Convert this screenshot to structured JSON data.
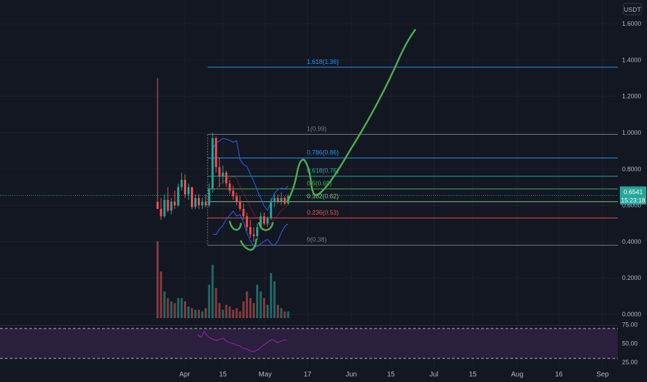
{
  "quote_currency": "USDT",
  "colors": {
    "background": "#131722",
    "grid": "#1e222d",
    "bull": "#26a69a",
    "bear": "#ef5350",
    "vol_bull": "#1f6b66",
    "vol_bear": "#8b3a3d",
    "bb": "#2962ff",
    "annotation": "#4caf50",
    "rsi": "#9c27b0",
    "rsi_band": "#2a1f3d",
    "price_tag": "#26a69a",
    "axis_text": "#b2b5be"
  },
  "price_axis": {
    "labels": [
      "1.6000",
      "1.4000",
      "1.2000",
      "1.0000",
      "0.8000",
      "0.6000",
      "0.4000",
      "0.2000",
      "0.0000"
    ],
    "values": [
      1.6,
      1.4,
      1.2,
      1.0,
      0.8,
      0.6,
      0.4,
      0.2,
      0.0
    ],
    "current_price": "0.6541",
    "countdown": "15:23:18"
  },
  "rsi_axis": {
    "labels": [
      "75.00",
      "50.00",
      "25.00"
    ],
    "values": [
      75,
      50,
      25
    ],
    "upper_band": 70,
    "lower_band": 30
  },
  "time_axis": {
    "labels": [
      "Apr",
      "15",
      "May",
      "17",
      "Jun",
      "15",
      "Jul",
      "15",
      "Aug",
      "16",
      "Sep"
    ]
  },
  "fib_levels": [
    {
      "label": "1.618(1.36)",
      "value": 1.36,
      "color": "#2196f3"
    },
    {
      "label": "1(0.99)",
      "value": 0.99,
      "color": "#787b86"
    },
    {
      "label": "0.786(0.86)",
      "value": 0.86,
      "color": "#2196f3"
    },
    {
      "label": "0.618(0.76)",
      "value": 0.76,
      "color": "#26a69a"
    },
    {
      "label": "0.5(0.69)",
      "value": 0.69,
      "color": "#4caf50"
    },
    {
      "label": "0.382(0.62)",
      "value": 0.62,
      "color": "#81c784"
    },
    {
      "label": "0.236(0.53)",
      "value": 0.53,
      "color": "#ef5350"
    },
    {
      "label": "0(0.38)",
      "value": 0.38,
      "color": "#787b86"
    }
  ],
  "chart_data": {
    "type": "candlestick",
    "ylim": [
      0,
      1.6
    ],
    "grid": true,
    "candles": [
      {
        "o": 0.62,
        "h": 1.3,
        "l": 0.58,
        "c": 0.58,
        "v": 0.46
      },
      {
        "o": 0.58,
        "h": 0.64,
        "l": 0.52,
        "c": 0.54,
        "v": 0.28
      },
      {
        "o": 0.54,
        "h": 0.66,
        "l": 0.53,
        "c": 0.63,
        "v": 0.16
      },
      {
        "o": 0.63,
        "h": 0.7,
        "l": 0.56,
        "c": 0.57,
        "v": 0.12
      },
      {
        "o": 0.57,
        "h": 0.64,
        "l": 0.55,
        "c": 0.62,
        "v": 0.1
      },
      {
        "o": 0.62,
        "h": 0.68,
        "l": 0.58,
        "c": 0.6,
        "v": 0.09
      },
      {
        "o": 0.6,
        "h": 0.72,
        "l": 0.59,
        "c": 0.7,
        "v": 0.12
      },
      {
        "o": 0.7,
        "h": 0.78,
        "l": 0.68,
        "c": 0.74,
        "v": 0.12
      },
      {
        "o": 0.74,
        "h": 0.77,
        "l": 0.64,
        "c": 0.66,
        "v": 0.1
      },
      {
        "o": 0.66,
        "h": 0.72,
        "l": 0.63,
        "c": 0.7,
        "v": 0.07
      },
      {
        "o": 0.7,
        "h": 0.7,
        "l": 0.58,
        "c": 0.59,
        "v": 0.06
      },
      {
        "o": 0.59,
        "h": 0.66,
        "l": 0.58,
        "c": 0.64,
        "v": 0.05
      },
      {
        "o": 0.64,
        "h": 0.66,
        "l": 0.58,
        "c": 0.6,
        "v": 0.05
      },
      {
        "o": 0.6,
        "h": 0.64,
        "l": 0.58,
        "c": 0.62,
        "v": 0.04
      },
      {
        "o": 0.62,
        "h": 0.66,
        "l": 0.59,
        "c": 0.6,
        "v": 0.06
      },
      {
        "o": 0.6,
        "h": 0.72,
        "l": 0.59,
        "c": 0.69,
        "v": 0.2
      },
      {
        "o": 0.69,
        "h": 1.0,
        "l": 0.67,
        "c": 0.97,
        "v": 0.32
      },
      {
        "o": 0.97,
        "h": 0.98,
        "l": 0.78,
        "c": 0.81,
        "v": 0.18
      },
      {
        "o": 0.81,
        "h": 0.86,
        "l": 0.7,
        "c": 0.76,
        "v": 0.09
      },
      {
        "o": 0.76,
        "h": 0.82,
        "l": 0.72,
        "c": 0.78,
        "v": 0.05
      },
      {
        "o": 0.78,
        "h": 0.79,
        "l": 0.7,
        "c": 0.72,
        "v": 0.08
      },
      {
        "o": 0.72,
        "h": 0.74,
        "l": 0.66,
        "c": 0.68,
        "v": 0.07
      },
      {
        "o": 0.68,
        "h": 0.71,
        "l": 0.63,
        "c": 0.65,
        "v": 0.05
      },
      {
        "o": 0.65,
        "h": 0.67,
        "l": 0.6,
        "c": 0.62,
        "v": 0.06
      },
      {
        "o": 0.62,
        "h": 0.65,
        "l": 0.57,
        "c": 0.58,
        "v": 0.04
      },
      {
        "o": 0.58,
        "h": 0.61,
        "l": 0.52,
        "c": 0.54,
        "v": 0.1
      },
      {
        "o": 0.54,
        "h": 0.56,
        "l": 0.46,
        "c": 0.48,
        "v": 0.16
      },
      {
        "o": 0.48,
        "h": 0.52,
        "l": 0.42,
        "c": 0.44,
        "v": 0.12
      },
      {
        "o": 0.44,
        "h": 0.48,
        "l": 0.4,
        "c": 0.43,
        "v": 0.09
      },
      {
        "o": 0.43,
        "h": 0.5,
        "l": 0.41,
        "c": 0.48,
        "v": 0.2
      },
      {
        "o": 0.48,
        "h": 0.56,
        "l": 0.47,
        "c": 0.54,
        "v": 0.16
      },
      {
        "o": 0.54,
        "h": 0.56,
        "l": 0.49,
        "c": 0.5,
        "v": 0.12
      },
      {
        "o": 0.5,
        "h": 0.54,
        "l": 0.48,
        "c": 0.53,
        "v": 0.08
      },
      {
        "o": 0.53,
        "h": 0.64,
        "l": 0.52,
        "c": 0.62,
        "v": 0.27
      },
      {
        "o": 0.62,
        "h": 0.66,
        "l": 0.59,
        "c": 0.64,
        "v": 0.22
      },
      {
        "o": 0.64,
        "h": 0.66,
        "l": 0.61,
        "c": 0.62,
        "v": 0.08
      },
      {
        "o": 0.62,
        "h": 0.67,
        "l": 0.6,
        "c": 0.64,
        "v": 0.06
      },
      {
        "o": 0.64,
        "h": 0.65,
        "l": 0.6,
        "c": 0.61,
        "v": 0.04
      },
      {
        "o": 0.61,
        "h": 0.66,
        "l": 0.6,
        "c": 0.65,
        "v": 0.04
      }
    ],
    "rsi": [
      62,
      58,
      66,
      60,
      57,
      55,
      54,
      56,
      57,
      53,
      51,
      50,
      48,
      47,
      44,
      43,
      41,
      39,
      40,
      42,
      46,
      49,
      52,
      55,
      54,
      51,
      53,
      55,
      54
    ]
  }
}
